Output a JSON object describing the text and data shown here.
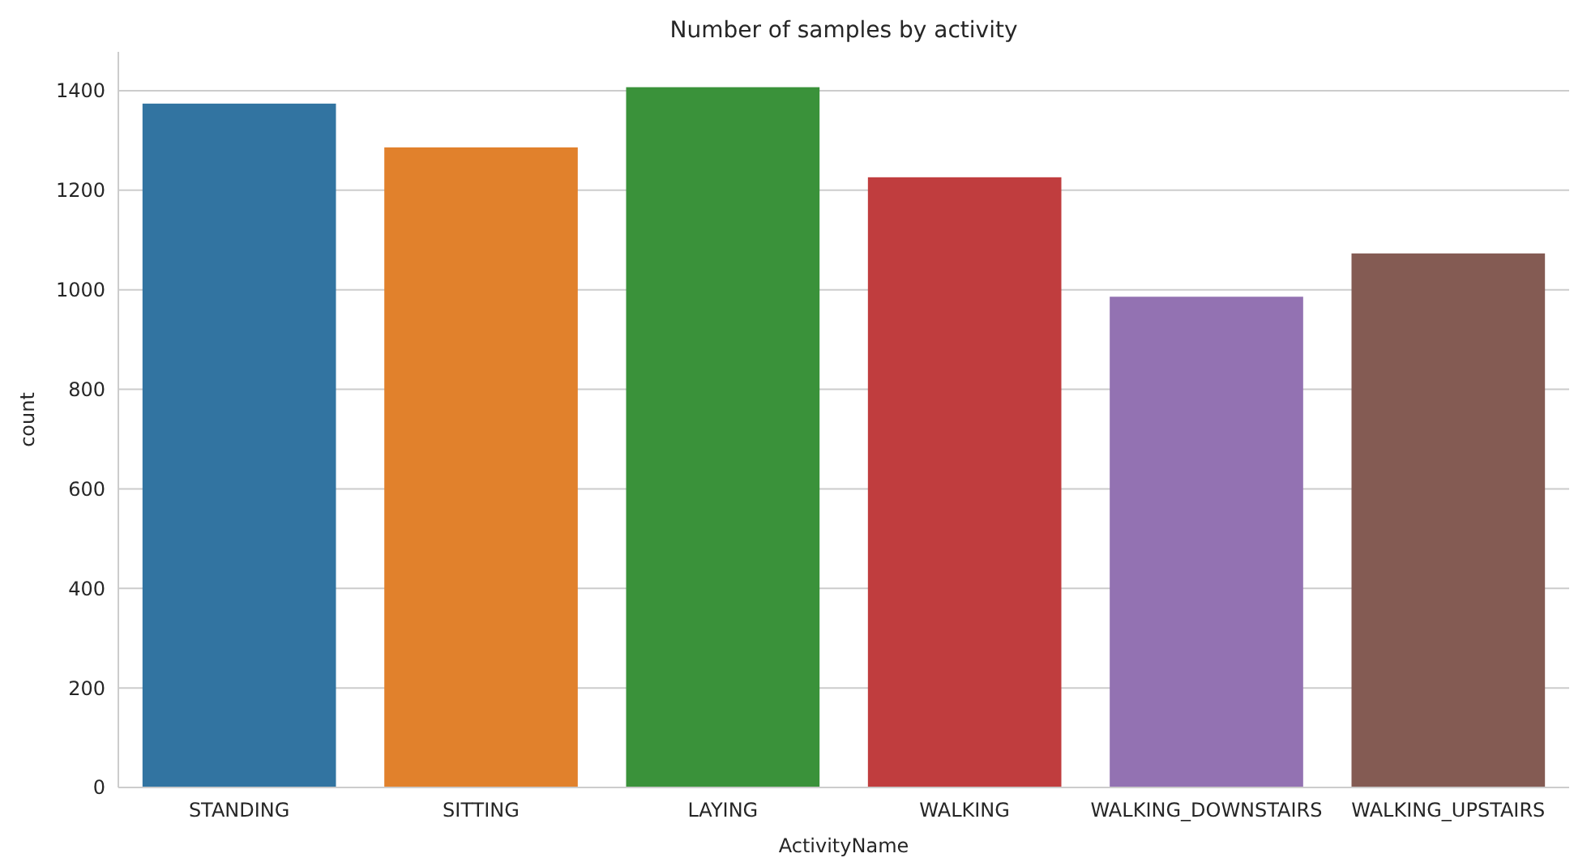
{
  "chart_data": {
    "type": "bar",
    "title": "Number of samples by activity",
    "xlabel": "ActivityName",
    "ylabel": "count",
    "categories": [
      "STANDING",
      "SITTING",
      "LAYING",
      "WALKING",
      "WALKING_DOWNSTAIRS",
      "WALKING_UPSTAIRS"
    ],
    "values": [
      1374,
      1286,
      1407,
      1226,
      986,
      1073
    ],
    "colors": [
      "#3274a1",
      "#e1812c",
      "#3a923a",
      "#c03d3e",
      "#9372b2",
      "#845b53"
    ],
    "ylim": [
      0,
      1478
    ],
    "yticks": [
      0,
      200,
      400,
      600,
      800,
      1000,
      1200,
      1400
    ],
    "grid": "y"
  }
}
